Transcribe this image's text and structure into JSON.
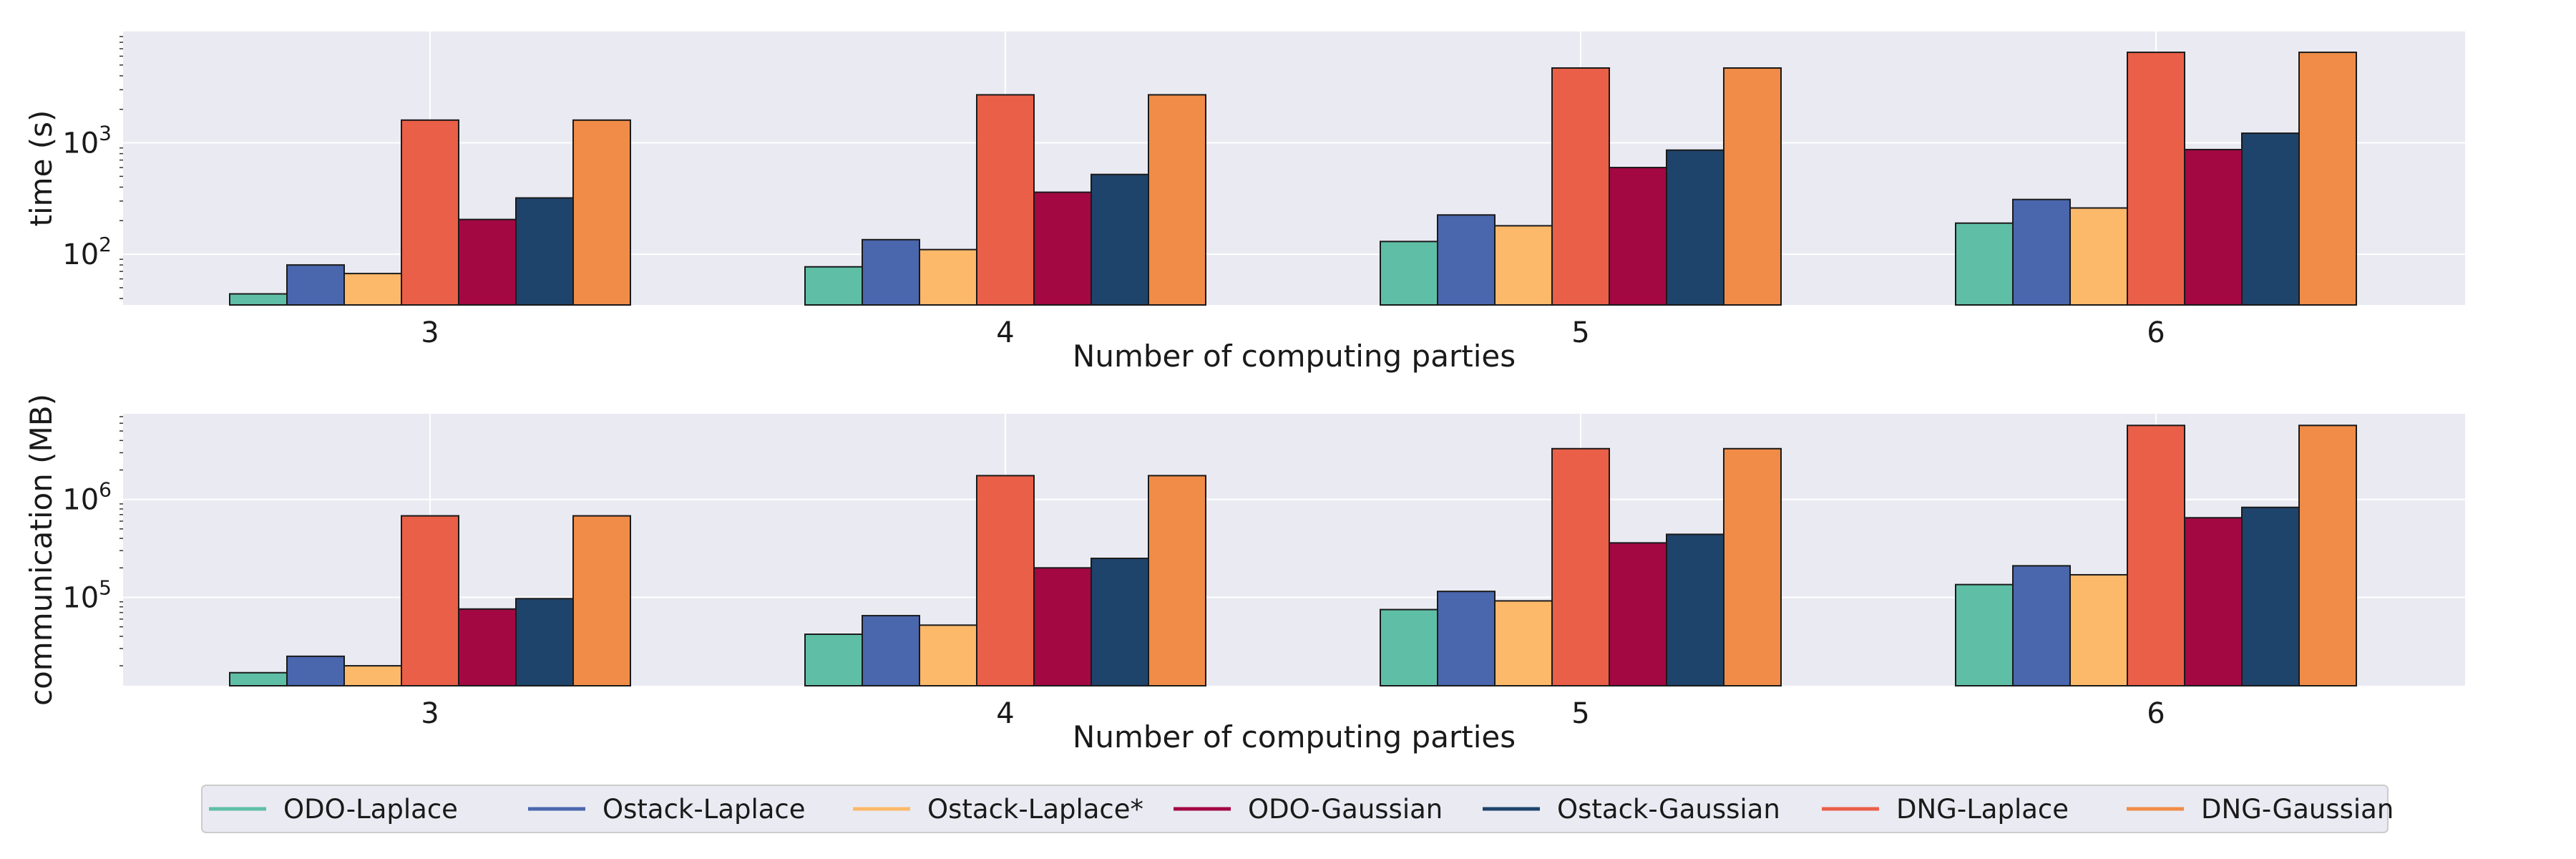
{
  "chart_data": [
    {
      "type": "bar",
      "yscale": "log",
      "grid": true,
      "xlabel": "Number of computing parties",
      "ylabel": "time (s)",
      "categories": [
        "3",
        "4",
        "5",
        "6"
      ],
      "ylim": [
        35,
        10000
      ],
      "yticks": [
        {
          "value": 100,
          "base": "10",
          "exp": "2"
        },
        {
          "value": 1000,
          "base": "10",
          "exp": "3"
        }
      ],
      "series": [
        {
          "name": "ODO-Laplace",
          "color": "#5fbfa6",
          "values": [
            44,
            77,
            130,
            190
          ]
        },
        {
          "name": "Ostack-Laplace",
          "color": "#4a66ad",
          "values": [
            80,
            135,
            225,
            310
          ]
        },
        {
          "name": "Ostack-Laplace*",
          "color": "#fdb96a",
          "values": [
            67,
            110,
            180,
            260
          ]
        },
        {
          "name": "DNG-Laplace",
          "color": "#ea5f48",
          "values": [
            1600,
            2700,
            4700,
            6500
          ]
        },
        {
          "name": "ODO-Gaussian",
          "color": "#a30843",
          "values": [
            205,
            360,
            600,
            870
          ]
        },
        {
          "name": "Ostack-Gaussian",
          "color": "#1f446c",
          "values": [
            320,
            520,
            860,
            1220
          ]
        },
        {
          "name": "DNG-Gaussian",
          "color": "#f08c47",
          "values": [
            1600,
            2700,
            4700,
            6500
          ]
        }
      ]
    },
    {
      "type": "bar",
      "yscale": "log",
      "grid": true,
      "xlabel": "Number of computing parties",
      "ylabel": "communication (MB)",
      "categories": [
        "3",
        "4",
        "5",
        "6"
      ],
      "ylim": [
        12500,
        7500000
      ],
      "yticks": [
        {
          "value": 100000,
          "base": "10",
          "exp": "5"
        },
        {
          "value": 1000000,
          "base": "10",
          "exp": "6"
        }
      ],
      "series": [
        {
          "name": "ODO-Laplace",
          "color": "#5fbfa6",
          "values": [
            17000,
            42000,
            75000,
            135000
          ]
        },
        {
          "name": "Ostack-Laplace",
          "color": "#4a66ad",
          "values": [
            25000,
            65000,
            115000,
            210000
          ]
        },
        {
          "name": "Ostack-Laplace*",
          "color": "#fdb96a",
          "values": [
            20000,
            52000,
            92000,
            170000
          ]
        },
        {
          "name": "DNG-Laplace",
          "color": "#ea5f48",
          "values": [
            680000,
            1750000,
            3300000,
            5700000
          ]
        },
        {
          "name": "ODO-Gaussian",
          "color": "#a30843",
          "values": [
            76000,
            200000,
            360000,
            650000
          ]
        },
        {
          "name": "Ostack-Gaussian",
          "color": "#1f446c",
          "values": [
            97000,
            250000,
            440000,
            830000
          ]
        },
        {
          "name": "DNG-Gaussian",
          "color": "#f08c47",
          "values": [
            680000,
            1750000,
            3300000,
            5700000
          ]
        }
      ]
    }
  ],
  "legend": {
    "position": "bottom-center",
    "items": [
      {
        "label": "ODO-Laplace",
        "color": "#5fbfa6"
      },
      {
        "label": "Ostack-Laplace",
        "color": "#4a66ad"
      },
      {
        "label": "Ostack-Laplace*",
        "color": "#fdb96a"
      },
      {
        "label": "ODO-Gaussian",
        "color": "#a30843"
      },
      {
        "label": "Ostack-Gaussian",
        "color": "#1f446c"
      },
      {
        "label": "DNG-Laplace",
        "color": "#ea5f48"
      },
      {
        "label": "DNG-Gaussian",
        "color": "#f08c47"
      }
    ]
  }
}
